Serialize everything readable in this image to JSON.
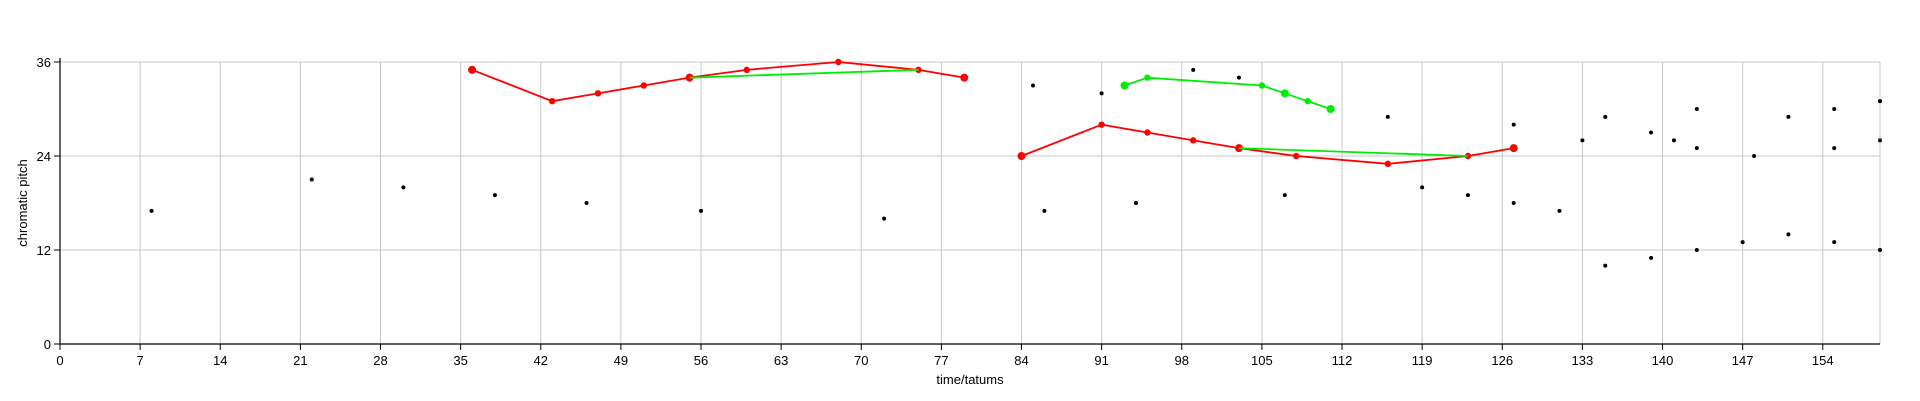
{
  "chart_data": {
    "type": "scatter",
    "xlabel": "time/tatums",
    "ylabel": "chromatic pitch",
    "xlim": [
      0,
      159
    ],
    "ylim": [
      0,
      36
    ],
    "x_ticks": [
      0,
      7,
      14,
      21,
      28,
      35,
      42,
      49,
      56,
      63,
      70,
      77,
      84,
      91,
      98,
      105,
      112,
      119,
      126,
      133,
      140,
      147,
      154
    ],
    "y_ticks": [
      0,
      12,
      24,
      36
    ],
    "grid": true,
    "colors": {
      "red": "#ff0000",
      "green": "#00ee00",
      "black": "#000000",
      "grid": "#c8c8c8"
    },
    "series": [
      {
        "color": "#ff0000",
        "style": "line-markers",
        "points": [
          [
            36,
            35
          ],
          [
            43,
            31
          ],
          [
            47,
            32
          ],
          [
            51,
            33
          ],
          [
            55,
            34
          ],
          [
            60,
            35
          ],
          [
            68,
            36
          ],
          [
            75,
            35
          ],
          [
            79,
            34
          ]
        ]
      },
      {
        "color": "#00ee00",
        "style": "line",
        "points": [
          [
            55,
            34
          ],
          [
            75,
            35
          ]
        ]
      },
      {
        "color": "#ff0000",
        "style": "line-markers",
        "points": [
          [
            84,
            24
          ],
          [
            91,
            28
          ],
          [
            95,
            27
          ],
          [
            99,
            26
          ],
          [
            103,
            25
          ],
          [
            108,
            24
          ],
          [
            116,
            23
          ],
          [
            123,
            24
          ],
          [
            127,
            25
          ]
        ]
      },
      {
        "color": "#00ee00",
        "style": "line",
        "points": [
          [
            103,
            25
          ],
          [
            123,
            24
          ]
        ]
      },
      {
        "color": "#00ee00",
        "style": "line-markers",
        "points": [
          [
            93,
            33
          ],
          [
            95,
            34
          ],
          [
            105,
            33
          ],
          [
            107,
            32
          ],
          [
            109,
            31
          ],
          [
            111,
            30
          ]
        ]
      },
      {
        "color": "#000000",
        "style": "dots",
        "points": [
          [
            8,
            17
          ],
          [
            22,
            21
          ],
          [
            30,
            20
          ],
          [
            38,
            19
          ],
          [
            46,
            18
          ],
          [
            56,
            17
          ],
          [
            72,
            16
          ],
          [
            85,
            33
          ],
          [
            86,
            17
          ],
          [
            91,
            32
          ],
          [
            94,
            18
          ],
          [
            99,
            35
          ],
          [
            103,
            34
          ],
          [
            107,
            19
          ],
          [
            116,
            29
          ],
          [
            119,
            20
          ],
          [
            123,
            19
          ],
          [
            127,
            28
          ],
          [
            127,
            18
          ],
          [
            131,
            17
          ],
          [
            133,
            26
          ],
          [
            135,
            29
          ],
          [
            135,
            10
          ],
          [
            139,
            27
          ],
          [
            139,
            11
          ],
          [
            141,
            26
          ],
          [
            143,
            30
          ],
          [
            143,
            25
          ],
          [
            143,
            12
          ],
          [
            147,
            13
          ],
          [
            148,
            24
          ],
          [
            151,
            29
          ],
          [
            151,
            14
          ],
          [
            155,
            30
          ],
          [
            155,
            25
          ],
          [
            155,
            13
          ],
          [
            159,
            31
          ],
          [
            159,
            26
          ],
          [
            159,
            12
          ]
        ]
      }
    ]
  }
}
